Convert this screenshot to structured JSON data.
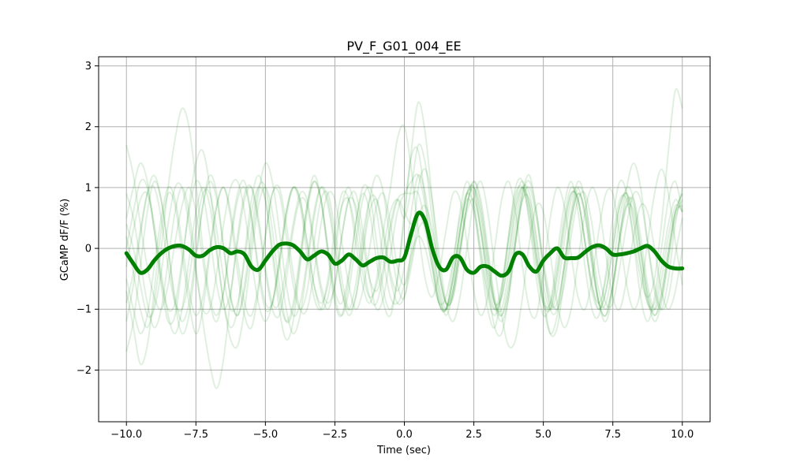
{
  "chart_data": {
    "type": "line",
    "title": "PV_F_G01_004_EE",
    "xlabel": "Time (sec)",
    "ylabel": "GCaMP dF/F (%)",
    "xlim": [
      -11,
      11
    ],
    "ylim": [
      -2.85,
      3.15
    ],
    "xticks": [
      -10.0,
      -7.5,
      -5.0,
      -2.5,
      0.0,
      2.5,
      5.0,
      7.5,
      10.0
    ],
    "xtick_labels": [
      "−10.0",
      "−7.5",
      "−5.0",
      "−2.5",
      "0.0",
      "2.5",
      "5.0",
      "7.5",
      "10.0"
    ],
    "yticks": [
      -2,
      -1,
      0,
      1,
      2,
      3
    ],
    "ytick_labels": [
      "−2",
      "−1",
      "0",
      "1",
      "2",
      "3"
    ],
    "grid": true,
    "line_color": "#008000",
    "trial_opacity": 0.12,
    "mean_trace": {
      "x": [
        -10.0,
        -9.75,
        -9.5,
        -9.25,
        -9.0,
        -8.75,
        -8.5,
        -8.25,
        -8.0,
        -7.75,
        -7.5,
        -7.25,
        -7.0,
        -6.75,
        -6.5,
        -6.25,
        -6.0,
        -5.75,
        -5.5,
        -5.25,
        -5.0,
        -4.75,
        -4.5,
        -4.25,
        -4.0,
        -3.75,
        -3.5,
        -3.25,
        -3.0,
        -2.75,
        -2.5,
        -2.25,
        -2.0,
        -1.75,
        -1.5,
        -1.25,
        -1.0,
        -0.75,
        -0.5,
        -0.25,
        0.0,
        0.25,
        0.5,
        0.75,
        1.0,
        1.25,
        1.5,
        1.75,
        2.0,
        2.25,
        2.5,
        2.75,
        3.0,
        3.25,
        3.5,
        3.75,
        4.0,
        4.25,
        4.5,
        4.75,
        5.0,
        5.25,
        5.5,
        5.75,
        6.0,
        6.25,
        6.5,
        6.75,
        7.0,
        7.25,
        7.5,
        7.75,
        8.0,
        8.25,
        8.5,
        8.75,
        9.0,
        9.25,
        9.5,
        9.75,
        10.0
      ],
      "y": [
        -0.08,
        -0.25,
        -0.4,
        -0.35,
        -0.2,
        -0.08,
        0.0,
        0.04,
        0.04,
        -0.02,
        -0.12,
        -0.12,
        -0.03,
        0.02,
        0.0,
        -0.08,
        -0.05,
        -0.1,
        -0.3,
        -0.35,
        -0.2,
        -0.05,
        0.06,
        0.08,
        0.05,
        -0.05,
        -0.18,
        -0.12,
        -0.05,
        -0.1,
        -0.25,
        -0.2,
        -0.1,
        -0.18,
        -0.28,
        -0.22,
        -0.16,
        -0.15,
        -0.22,
        -0.2,
        -0.15,
        0.25,
        0.58,
        0.45,
        0.0,
        -0.3,
        -0.35,
        -0.15,
        -0.15,
        -0.35,
        -0.4,
        -0.3,
        -0.3,
        -0.38,
        -0.45,
        -0.38,
        -0.1,
        -0.1,
        -0.3,
        -0.38,
        -0.2,
        -0.08,
        0.0,
        -0.15,
        -0.16,
        -0.15,
        -0.06,
        0.02,
        0.05,
        0.0,
        -0.1,
        -0.1,
        -0.08,
        -0.05,
        0.0,
        0.04,
        -0.05,
        -0.2,
        -0.3,
        -0.33,
        -0.33
      ]
    },
    "trials": [
      {
        "y": [
          1.7,
          1.2,
          0.4,
          -0.3,
          -0.8,
          -1.0,
          -0.6,
          0.1,
          0.7,
          1.0,
          0.6,
          -0.2,
          -0.9,
          -1.2,
          -0.7,
          0.2,
          0.9,
          1.1,
          0.5,
          -0.4,
          -1.0,
          -0.9,
          -0.2,
          0.6,
          1.0,
          0.7,
          -0.1,
          -0.8,
          -1.0,
          -0.5,
          0.3,
          0.9,
          0.8,
          0.1,
          -0.6,
          -0.9,
          -0.5,
          0.3,
          1.0,
          1.8,
          2.0,
          1.3,
          0.3,
          -0.5,
          -0.8,
          -0.4,
          0.3,
          0.9,
          0.8,
          0.1,
          -0.7,
          -1.1,
          -0.8,
          0.0,
          0.8,
          1.1,
          0.6,
          -0.3,
          -1.0,
          -1.1,
          -0.4,
          0.5,
          1.0,
          0.7,
          -0.1,
          -0.8,
          -1.0,
          -0.5,
          0.3,
          0.9,
          0.9,
          0.2,
          -0.6,
          -1.0,
          -0.7,
          0.1,
          0.9,
          1.3,
          0.9,
          0.1,
          -0.6
        ]
      },
      {
        "y": [
          -1.7,
          -1.2,
          -0.3,
          0.6,
          1.1,
          0.8,
          0.0,
          -0.9,
          -1.4,
          -1.1,
          -0.2,
          0.7,
          1.2,
          0.9,
          0.0,
          -0.8,
          -1.1,
          -0.6,
          0.3,
          1.0,
          1.0,
          0.3,
          -0.6,
          -1.2,
          -1.0,
          -0.2,
          0.7,
          1.2,
          0.8,
          -0.1,
          -0.9,
          -1.1,
          -0.5,
          0.4,
          1.0,
          0.9,
          0.1,
          -0.7,
          -1.0,
          -0.5,
          0.6,
          1.5,
          1.6,
          0.8,
          -0.2,
          -0.9,
          -1.0,
          -0.3,
          0.6,
          1.1,
          0.7,
          -0.2,
          -1.0,
          -1.3,
          -0.7,
          0.2,
          1.0,
          1.1,
          0.4,
          -0.5,
          -1.1,
          -0.9,
          -0.1,
          0.7,
          1.1,
          0.6,
          -0.3,
          -1.0,
          -1.1,
          -0.4,
          0.5,
          1.1,
          0.9,
          0.1,
          -0.8,
          -1.2,
          -0.8,
          0.0,
          0.8,
          1.1,
          0.6
        ]
      },
      {
        "y": [
          0.5,
          1.0,
          1.4,
          1.1,
          0.3,
          -0.6,
          -1.2,
          -1.1,
          -0.3,
          0.7,
          1.4,
          1.6,
          1.0,
          0.0,
          -0.9,
          -1.3,
          -1.0,
          -0.1,
          0.8,
          1.2,
          0.8,
          -0.1,
          -1.0,
          -1.5,
          -1.2,
          -0.3,
          0.6,
          1.1,
          0.8,
          0.0,
          -0.7,
          -0.9,
          -0.4,
          0.4,
          0.9,
          0.6,
          -0.2,
          -0.9,
          -1.1,
          -0.5,
          0.5,
          1.6,
          2.4,
          1.9,
          0.8,
          -0.3,
          -0.9,
          -0.8,
          -0.1,
          0.7,
          1.1,
          0.7,
          -0.1,
          -0.9,
          -1.2,
          -0.8,
          0.1,
          0.9,
          1.2,
          0.6,
          -0.3,
          -1.0,
          -1.0,
          -0.3,
          0.6,
          1.1,
          0.8,
          -0.1,
          -0.9,
          -1.2,
          -0.7,
          0.2,
          1.0,
          1.4,
          1.0,
          0.1,
          -0.7,
          -1.0,
          -0.5,
          0.4,
          1.0
        ]
      },
      {
        "y": [
          -0.7,
          -1.3,
          -1.9,
          -1.6,
          -0.7,
          0.3,
          0.9,
          0.7,
          -0.1,
          -0.9,
          -1.4,
          -1.0,
          -0.1,
          0.7,
          1.0,
          0.5,
          -0.4,
          -1.1,
          -1.3,
          -0.7,
          0.2,
          0.9,
          0.9,
          0.2,
          -0.6,
          -1.0,
          -0.7,
          0.1,
          0.8,
          0.9,
          0.3,
          -0.5,
          -1.0,
          -0.8,
          -0.1,
          0.6,
          0.8,
          0.3,
          -0.4,
          -0.7,
          -0.3,
          0.6,
          1.2,
          0.9,
          0.1,
          -0.7,
          -1.1,
          -0.7,
          0.2,
          0.9,
          1.0,
          0.3,
          -0.6,
          -1.3,
          -1.4,
          -0.8,
          0.1,
          0.8,
          0.8,
          0.1,
          -0.8,
          -1.4,
          -1.3,
          -0.5,
          0.4,
          0.9,
          0.6,
          -0.2,
          -0.9,
          -1.1,
          -0.6,
          0.2,
          0.8,
          0.7,
          0.0,
          -0.8,
          -1.2,
          -0.9,
          -0.2,
          0.5,
          0.8
        ]
      },
      {
        "y": [
          0.2,
          -0.4,
          -1.0,
          -1.3,
          -0.9,
          0.0,
          1.0,
          1.8,
          2.3,
          2.0,
          1.1,
          0.0,
          -0.8,
          -1.1,
          -0.7,
          0.1,
          0.8,
          1.0,
          0.5,
          -0.3,
          -0.9,
          -0.9,
          -0.3,
          0.5,
          1.0,
          0.8,
          0.1,
          -0.6,
          -0.9,
          -0.6,
          0.1,
          0.7,
          0.8,
          0.3,
          -0.4,
          -0.8,
          -0.6,
          0.0,
          0.6,
          0.8,
          0.5,
          1.0,
          1.7,
          1.4,
          0.5,
          -0.4,
          -0.9,
          -0.7,
          0.0,
          0.6,
          0.8,
          0.3,
          -0.4,
          -0.9,
          -0.8,
          -0.2,
          0.6,
          1.0,
          0.7,
          -0.1,
          -0.8,
          -1.0,
          -0.5,
          0.3,
          0.9,
          0.8,
          0.1,
          -0.6,
          -0.9,
          -0.5,
          0.2,
          0.8,
          0.8,
          0.2,
          -0.5,
          -0.8,
          -0.5,
          0.4,
          1.6,
          2.6,
          2.3
        ]
      },
      {
        "y": [
          -0.3,
          0.3,
          0.8,
          0.9,
          0.4,
          -0.4,
          -1.1,
          -1.4,
          -1.0,
          -0.2,
          0.6,
          1.0,
          0.7,
          -0.1,
          -0.9,
          -1.5,
          -1.6,
          -1.0,
          -0.1,
          0.7,
          1.0,
          0.6,
          -0.2,
          -1.0,
          -1.4,
          -1.1,
          -0.3,
          0.5,
          1.0,
          0.8,
          0.1,
          -0.7,
          -1.1,
          -0.8,
          0.0,
          0.8,
          1.2,
          0.9,
          0.1,
          -0.6,
          -0.8,
          0.0,
          1.0,
          1.3,
          0.8,
          -0.1,
          -0.9,
          -1.2,
          -0.8,
          0.0,
          0.8,
          1.1,
          0.6,
          -0.3,
          -1.1,
          -1.6,
          -1.5,
          -0.8,
          0.1,
          0.7,
          0.6,
          -0.1,
          -0.9,
          -1.3,
          -1.0,
          -0.2,
          0.6,
          1.0,
          0.7,
          -0.1,
          -0.8,
          -1.0,
          -0.5,
          0.2,
          0.7,
          0.6,
          0.0,
          -0.7,
          -1.0,
          -0.7,
          0.0
        ]
      },
      {
        "y": [
          0.9,
          0.5,
          -0.2,
          -0.9,
          -1.3,
          -1.0,
          -0.2,
          0.6,
          1.0,
          0.6,
          -0.3,
          -1.2,
          -1.9,
          -2.3,
          -1.8,
          -0.8,
          0.2,
          0.9,
          1.0,
          0.4,
          -0.4,
          -1.0,
          -1.1,
          -0.5,
          0.3,
          0.8,
          0.7,
          0.0,
          -0.7,
          -1.0,
          -0.6,
          0.2,
          0.8,
          0.7,
          0.1,
          -0.5,
          -0.7,
          -0.3,
          0.4,
          0.8,
          0.6,
          0.4,
          0.6,
          0.3,
          -0.3,
          -0.9,
          -1.0,
          -0.5,
          0.3,
          0.8,
          0.6,
          -0.1,
          -0.8,
          -1.1,
          -0.7,
          0.1,
          0.8,
          1.1,
          0.7,
          -0.1,
          -0.9,
          -1.4,
          -1.1,
          -0.3,
          0.5,
          0.9,
          0.6,
          -0.2,
          -0.9,
          -1.1,
          -0.6,
          0.2,
          0.7,
          0.6,
          -0.1,
          -0.8,
          -1.1,
          -0.8,
          -0.1,
          0.6,
          0.9
        ]
      },
      {
        "y": [
          -1.2,
          -0.6,
          0.2,
          0.9,
          1.2,
          0.8,
          0.0,
          -0.8,
          -1.2,
          -0.9,
          -0.1,
          0.7,
          1.1,
          0.8,
          0.0,
          -0.8,
          -1.1,
          -0.7,
          0.1,
          0.9,
          1.4,
          1.1,
          0.3,
          -0.6,
          -1.1,
          -0.9,
          -0.2,
          0.6,
          1.0,
          0.7,
          0.0,
          -0.7,
          -1.0,
          -0.6,
          0.2,
          0.8,
          0.8,
          0.2,
          -0.5,
          -0.9,
          -0.8,
          -0.3,
          0.3,
          0.4,
          0.0,
          -0.6,
          -1.0,
          -0.7,
          0.0,
          0.7,
          1.0,
          0.6,
          -0.2,
          -0.9,
          -1.0,
          -0.4,
          0.4,
          1.0,
          0.9,
          0.2,
          -0.6,
          -1.0,
          -0.7,
          0.1,
          0.8,
          1.0,
          0.5,
          -0.3,
          -0.9,
          -0.9,
          -0.3,
          0.5,
          1.0,
          0.8,
          0.0,
          -0.7,
          -1.1,
          -0.8,
          -0.1,
          0.6,
          0.9
        ]
      },
      {
        "y": [
          0.0,
          0.6,
          1.1,
          1.0,
          0.3,
          -0.5,
          -1.0,
          -0.9,
          -0.2,
          0.6,
          1.1,
          0.9,
          0.2,
          -0.6,
          -1.0,
          -0.7,
          0.1,
          0.8,
          1.0,
          0.5,
          -0.3,
          -0.9,
          -0.9,
          -0.3,
          0.4,
          0.9,
          0.8,
          0.1,
          -0.6,
          -0.9,
          -0.6,
          0.2,
          0.8,
          0.9,
          0.3,
          -0.5,
          -1.0,
          -0.8,
          -0.1,
          0.6,
          0.9,
          1.1,
          1.2,
          0.7,
          -0.1,
          -0.8,
          -1.0,
          -0.5,
          0.3,
          0.9,
          0.9,
          0.3,
          -0.5,
          -1.0,
          -0.8,
          -0.1,
          0.7,
          1.0,
          0.6,
          -0.2,
          -0.9,
          -1.0,
          -0.4,
          0.4,
          0.9,
          0.8,
          0.1,
          -0.6,
          -1.0,
          -0.7,
          0.0,
          0.7,
          0.9,
          0.4,
          -0.3,
          -0.9,
          -0.9,
          -0.3,
          0.4,
          0.8,
          0.6
        ]
      },
      {
        "y": [
          -0.5,
          -1.0,
          -1.4,
          -1.1,
          -0.3,
          0.5,
          1.0,
          0.8,
          0.1,
          -0.7,
          -1.1,
          -0.8,
          0.0,
          0.7,
          1.0,
          0.6,
          -0.2,
          -0.9,
          -1.1,
          -0.6,
          0.2,
          0.9,
          1.0,
          0.4,
          -0.4,
          -1.0,
          -1.0,
          -0.4,
          0.4,
          0.9,
          0.8,
          0.1,
          -0.6,
          -1.0,
          -0.7,
          0.0,
          0.7,
          0.9,
          0.4,
          -0.3,
          -0.6,
          -0.2,
          0.5,
          0.7,
          0.3,
          -0.4,
          -0.9,
          -0.8,
          -0.1,
          0.7,
          1.1,
          0.8,
          0.0,
          -0.8,
          -1.1,
          -0.7,
          0.1,
          0.8,
          1.0,
          0.5,
          -0.3,
          -0.9,
          -0.9,
          -0.3,
          0.5,
          1.0,
          0.8,
          0.0,
          -0.7,
          -1.0,
          -0.6,
          0.1,
          0.7,
          0.8,
          0.2,
          -0.6,
          -1.0,
          -0.7,
          0.0,
          0.6,
          0.7
        ]
      },
      {
        "y": [
          0.4,
          0.0,
          -0.6,
          -1.1,
          -1.0,
          -0.4,
          0.4,
          1.0,
          1.0,
          0.4,
          -0.4,
          -1.0,
          -1.0,
          -0.4,
          0.4,
          1.0,
          1.1,
          0.6,
          -0.2,
          -0.9,
          -1.2,
          -0.9,
          -0.2,
          0.6,
          1.0,
          0.8,
          0.1,
          -0.6,
          -1.0,
          -0.8,
          -0.1,
          0.7,
          1.0,
          0.6,
          -0.2,
          -0.8,
          -0.9,
          -0.4,
          0.3,
          0.8,
          0.9,
          0.9,
          0.9,
          0.4,
          -0.3,
          -0.9,
          -1.0,
          -0.5,
          0.3,
          0.9,
          1.0,
          0.5,
          -0.3,
          -0.9,
          -1.1,
          -0.6,
          0.2,
          0.9,
          1.1,
          0.6,
          -0.2,
          -0.8,
          -1.0,
          -0.6,
          0.2,
          0.8,
          0.9,
          0.4,
          -0.4,
          -0.9,
          -0.9,
          -0.3,
          0.4,
          0.9,
          0.8,
          0.1,
          -0.6,
          -1.0,
          -0.8,
          -0.1,
          0.5
        ]
      },
      {
        "y": [
          -0.9,
          -0.4,
          0.3,
          0.9,
          1.0,
          0.5,
          -0.3,
          -0.9,
          -1.0,
          -0.5,
          0.3,
          0.9,
          0.9,
          0.3,
          -0.5,
          -1.0,
          -0.9,
          -0.2,
          0.6,
          1.0,
          0.8,
          0.0,
          -0.8,
          -1.2,
          -0.9,
          -0.1,
          0.7,
          1.1,
          0.8,
          0.0,
          -0.8,
          -1.1,
          -0.7,
          0.1,
          0.8,
          1.0,
          0.6,
          -0.2,
          -0.8,
          -0.9,
          -0.6,
          -0.1,
          0.2,
          0.0,
          -0.5,
          -0.9,
          -0.8,
          -0.2,
          0.5,
          0.9,
          0.7,
          0.0,
          -0.7,
          -1.0,
          -0.6,
          0.2,
          0.9,
          1.0,
          0.5,
          -0.3,
          -0.9,
          -0.9,
          -0.3,
          0.5,
          1.0,
          0.8,
          0.1,
          -0.7,
          -1.0,
          -0.7,
          0.0,
          0.7,
          0.9,
          0.5,
          -0.3,
          -0.9,
          -1.0,
          -0.5,
          0.2,
          0.7,
          0.6
        ]
      }
    ]
  }
}
